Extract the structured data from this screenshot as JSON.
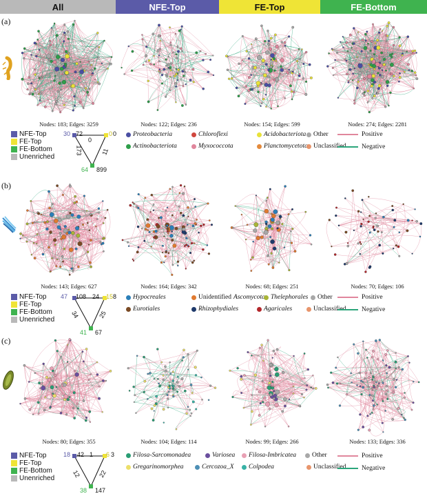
{
  "header": [
    {
      "label": "All",
      "color": "#b9b9b9"
    },
    {
      "label": "NFE-Top",
      "color": "#5b5ba8"
    },
    {
      "label": "FE-Top",
      "color": "#efe436"
    },
    {
      "label": "FE-Bottom",
      "color": "#3fb34f"
    }
  ],
  "group_legend": [
    {
      "label": "NFE-Top",
      "color": "#5b5ba8"
    },
    {
      "label": "FE-Top",
      "color": "#efe436"
    },
    {
      "label": "FE-Bottom",
      "color": "#3fb34f"
    },
    {
      "label": "Unenriched",
      "color": "#b9b9b9"
    }
  ],
  "sign_legend": {
    "positive": "Positive",
    "negative": "Negative",
    "pos_color": "#e0869c",
    "neg_color": "#2aa57a"
  },
  "panels": [
    {
      "label": "(a)",
      "captions": [
        "Nodes: 183; Edges: 3259",
        "Nodes: 122; Edges: 236",
        "Nodes: 154; Edges: 599",
        "Nodes: 274; Edges: 2281"
      ],
      "triangle": {
        "nfe_nodes": "30",
        "nfe_edges": "72",
        "fe_nodes": "0",
        "fe_edges": "0",
        "feb_nodes": "64",
        "feb_edges": "899",
        "top_edge": "0",
        "left_edge": "173",
        "right_edge": "11"
      },
      "taxa": [
        {
          "label": "Proteobacteria",
          "color": "#4a4fa3",
          "italic": true
        },
        {
          "label": "Chloroflexi",
          "color": "#d0473e",
          "italic": true
        },
        {
          "label": "Acidobacteriota",
          "color": "#e8e23a",
          "italic": true
        },
        {
          "label": "Other",
          "color": "#a8a8a8",
          "italic": false
        },
        {
          "label": "Actinobacteriota",
          "color": "#2e9e4a",
          "italic": true
        },
        {
          "label": "Myxococcota",
          "color": "#e0869c",
          "italic": true
        },
        {
          "label": "Planctomycetota",
          "color": "#e48a3c",
          "italic": true
        },
        {
          "label": "Unclassified",
          "color": "#e8956c",
          "italic": false
        }
      ]
    },
    {
      "label": "(b)",
      "captions": [
        "Nodes: 143; Edges: 627",
        "Nodes: 164; Edges: 342",
        "Nodes: 68; Edges: 251",
        "Nodes: 70; Edges: 106"
      ],
      "triangle": {
        "nfe_nodes": "47",
        "nfe_edges": "108",
        "fe_nodes": "15",
        "fe_edges": "8",
        "feb_nodes": "41",
        "feb_edges": "67",
        "top_edge": "24",
        "left_edge": "34",
        "right_edge": "25"
      },
      "taxa": [
        {
          "label": "Hypocreales",
          "color": "#2b7fb8",
          "italic": true
        },
        {
          "label": "Unidentified",
          "label2": "Ascomycota",
          "color": "#e07a30",
          "italic": false
        },
        {
          "label": "Thelephorales",
          "color": "#a9b537",
          "italic": true
        },
        {
          "label": "Other",
          "color": "#a8a8a8",
          "italic": false
        },
        {
          "label": "Eurotiales",
          "color": "#7a4a24",
          "italic": true
        },
        {
          "label": "Rhizophydiales",
          "color": "#1f3a6b",
          "italic": true
        },
        {
          "label": "Agaricales",
          "color": "#b3262a",
          "italic": true
        },
        {
          "label": "Unclassified",
          "color": "#e8956c",
          "italic": false
        }
      ]
    },
    {
      "label": "(c)",
      "captions": [
        "Nodes: 80; Edges: 355",
        "Nodes: 104; Edges: 114",
        "Nodes: 99; Edges: 266",
        "Nodes: 133; Edges: 336"
      ],
      "triangle": {
        "nfe_nodes": "18",
        "nfe_edges": "42",
        "fe_nodes": "6",
        "fe_edges": "3",
        "feb_nodes": "38",
        "feb_edges": "147",
        "top_edge": "1",
        "left_edge": "12",
        "right_edge": "22"
      },
      "taxa": [
        {
          "label": "Filosa-Sarcomonadea",
          "color": "#2a9d74",
          "italic": true
        },
        {
          "label": "Variosea",
          "color": "#6a4f9e",
          "italic": true
        },
        {
          "label": "Filosa-Imbricatea",
          "color": "#e8a0b4",
          "italic": true
        },
        {
          "label": "Other",
          "color": "#a8a8a8",
          "italic": false
        },
        {
          "label": "Gregarinomorphea",
          "color": "#ecdf6a",
          "italic": true
        },
        {
          "label": "Cercozoa_X",
          "color": "#4d8fb5",
          "italic": true
        },
        {
          "label": "Colpodea",
          "color": "#38b2a6",
          "italic": true
        },
        {
          "label": "Unclassified",
          "color": "#e8956c",
          "italic": false
        }
      ]
    }
  ]
}
